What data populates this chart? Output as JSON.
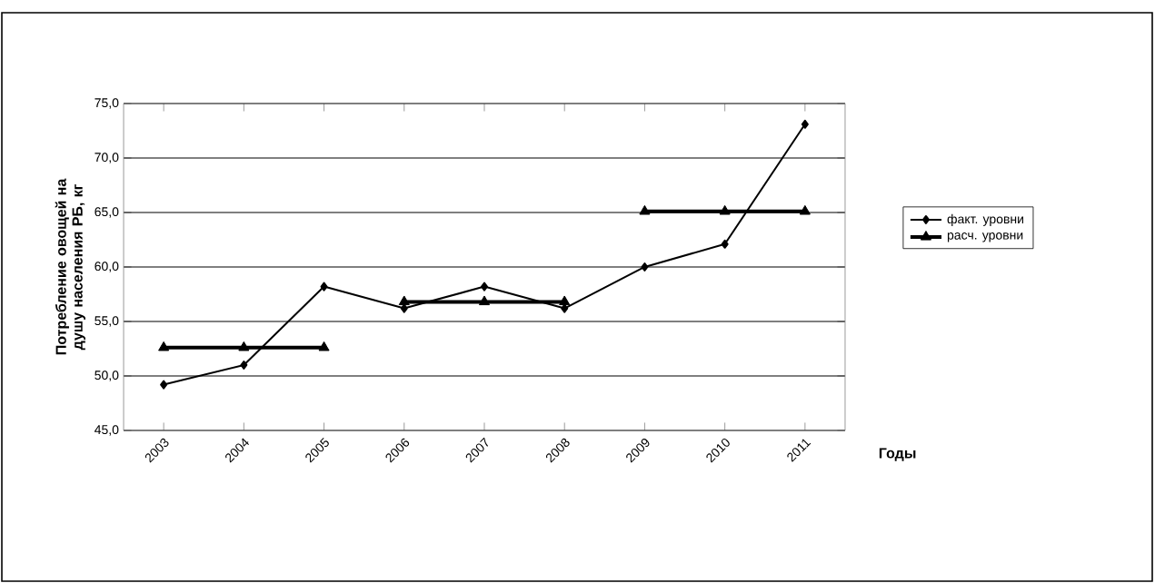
{
  "chart_data": {
    "type": "line",
    "xlabel": "Годы",
    "ylabel": "Потребление овощей на душу населения РБ, кг",
    "categories": [
      "2003",
      "2004",
      "2005",
      "2006",
      "2007",
      "2008",
      "2009",
      "2010",
      "2011"
    ],
    "series": [
      {
        "name": "факт. уровни",
        "color": "#000000",
        "marker": "diamond",
        "values": [
          49.2,
          51.0,
          58.2,
          56.2,
          58.2,
          56.2,
          60.0,
          62.1,
          73.1
        ]
      },
      {
        "name": "расч. уровни",
        "color": "#000000",
        "marker": "triangle",
        "values": [
          52.6,
          52.6,
          52.6,
          null,
          null,
          null,
          null,
          null,
          null
        ]
      },
      {
        "color": "#000000",
        "marker": "triangle",
        "values": [
          null,
          null,
          null,
          56.8,
          56.8,
          56.8,
          null,
          null,
          null
        ]
      },
      {
        "color": "#000000",
        "marker": "triangle",
        "values": [
          null,
          null,
          null,
          null,
          null,
          null,
          65.1,
          65.1,
          65.1
        ]
      }
    ],
    "ylim": [
      45,
      75
    ],
    "yticks": [
      {
        "value": 45,
        "label": "45,0"
      },
      {
        "value": 50,
        "label": "50,0"
      },
      {
        "value": 55,
        "label": "55,0"
      },
      {
        "value": 60,
        "label": "60,0"
      },
      {
        "value": 65,
        "label": "65,0"
      },
      {
        "value": 70,
        "label": "70,0"
      },
      {
        "value": 75,
        "label": "75,0"
      }
    ],
    "grid": "y",
    "legend": "right",
    "line_style": "solid"
  }
}
